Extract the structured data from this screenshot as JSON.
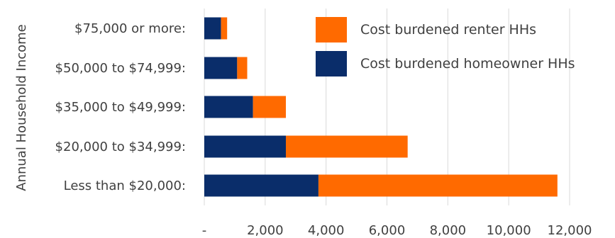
{
  "chart_data": {
    "type": "bar",
    "orientation": "horizontal",
    "stacked": true,
    "ylabel": "Annual Household Income",
    "categories": [
      "$75,000 or more:",
      "$50,000 to $74,999:",
      "$35,000 to $49,999:",
      "$20,000 to $34,999:",
      "Less than $20,000:"
    ],
    "series": [
      {
        "name": "Cost burdened homeowner HHs",
        "color": "#0a2d6a",
        "values": [
          550,
          1080,
          1600,
          2680,
          3750
        ]
      },
      {
        "name": "Cost burdened renter HHs",
        "color": "#ff6a00",
        "values": [
          200,
          330,
          1080,
          4000,
          7850
        ]
      }
    ],
    "xlim": [
      0,
      12000
    ],
    "xticks": [
      0,
      2000,
      4000,
      6000,
      8000,
      10000,
      12000
    ],
    "xtick_labels": [
      "-",
      "2,000",
      "4,000",
      "6,000",
      "8,000",
      "10,000",
      "12,000"
    ],
    "grid": "vertical",
    "legend": {
      "position": "top-right",
      "order": [
        "Cost burdened renter HHs",
        "Cost burdened homeowner HHs"
      ]
    }
  }
}
